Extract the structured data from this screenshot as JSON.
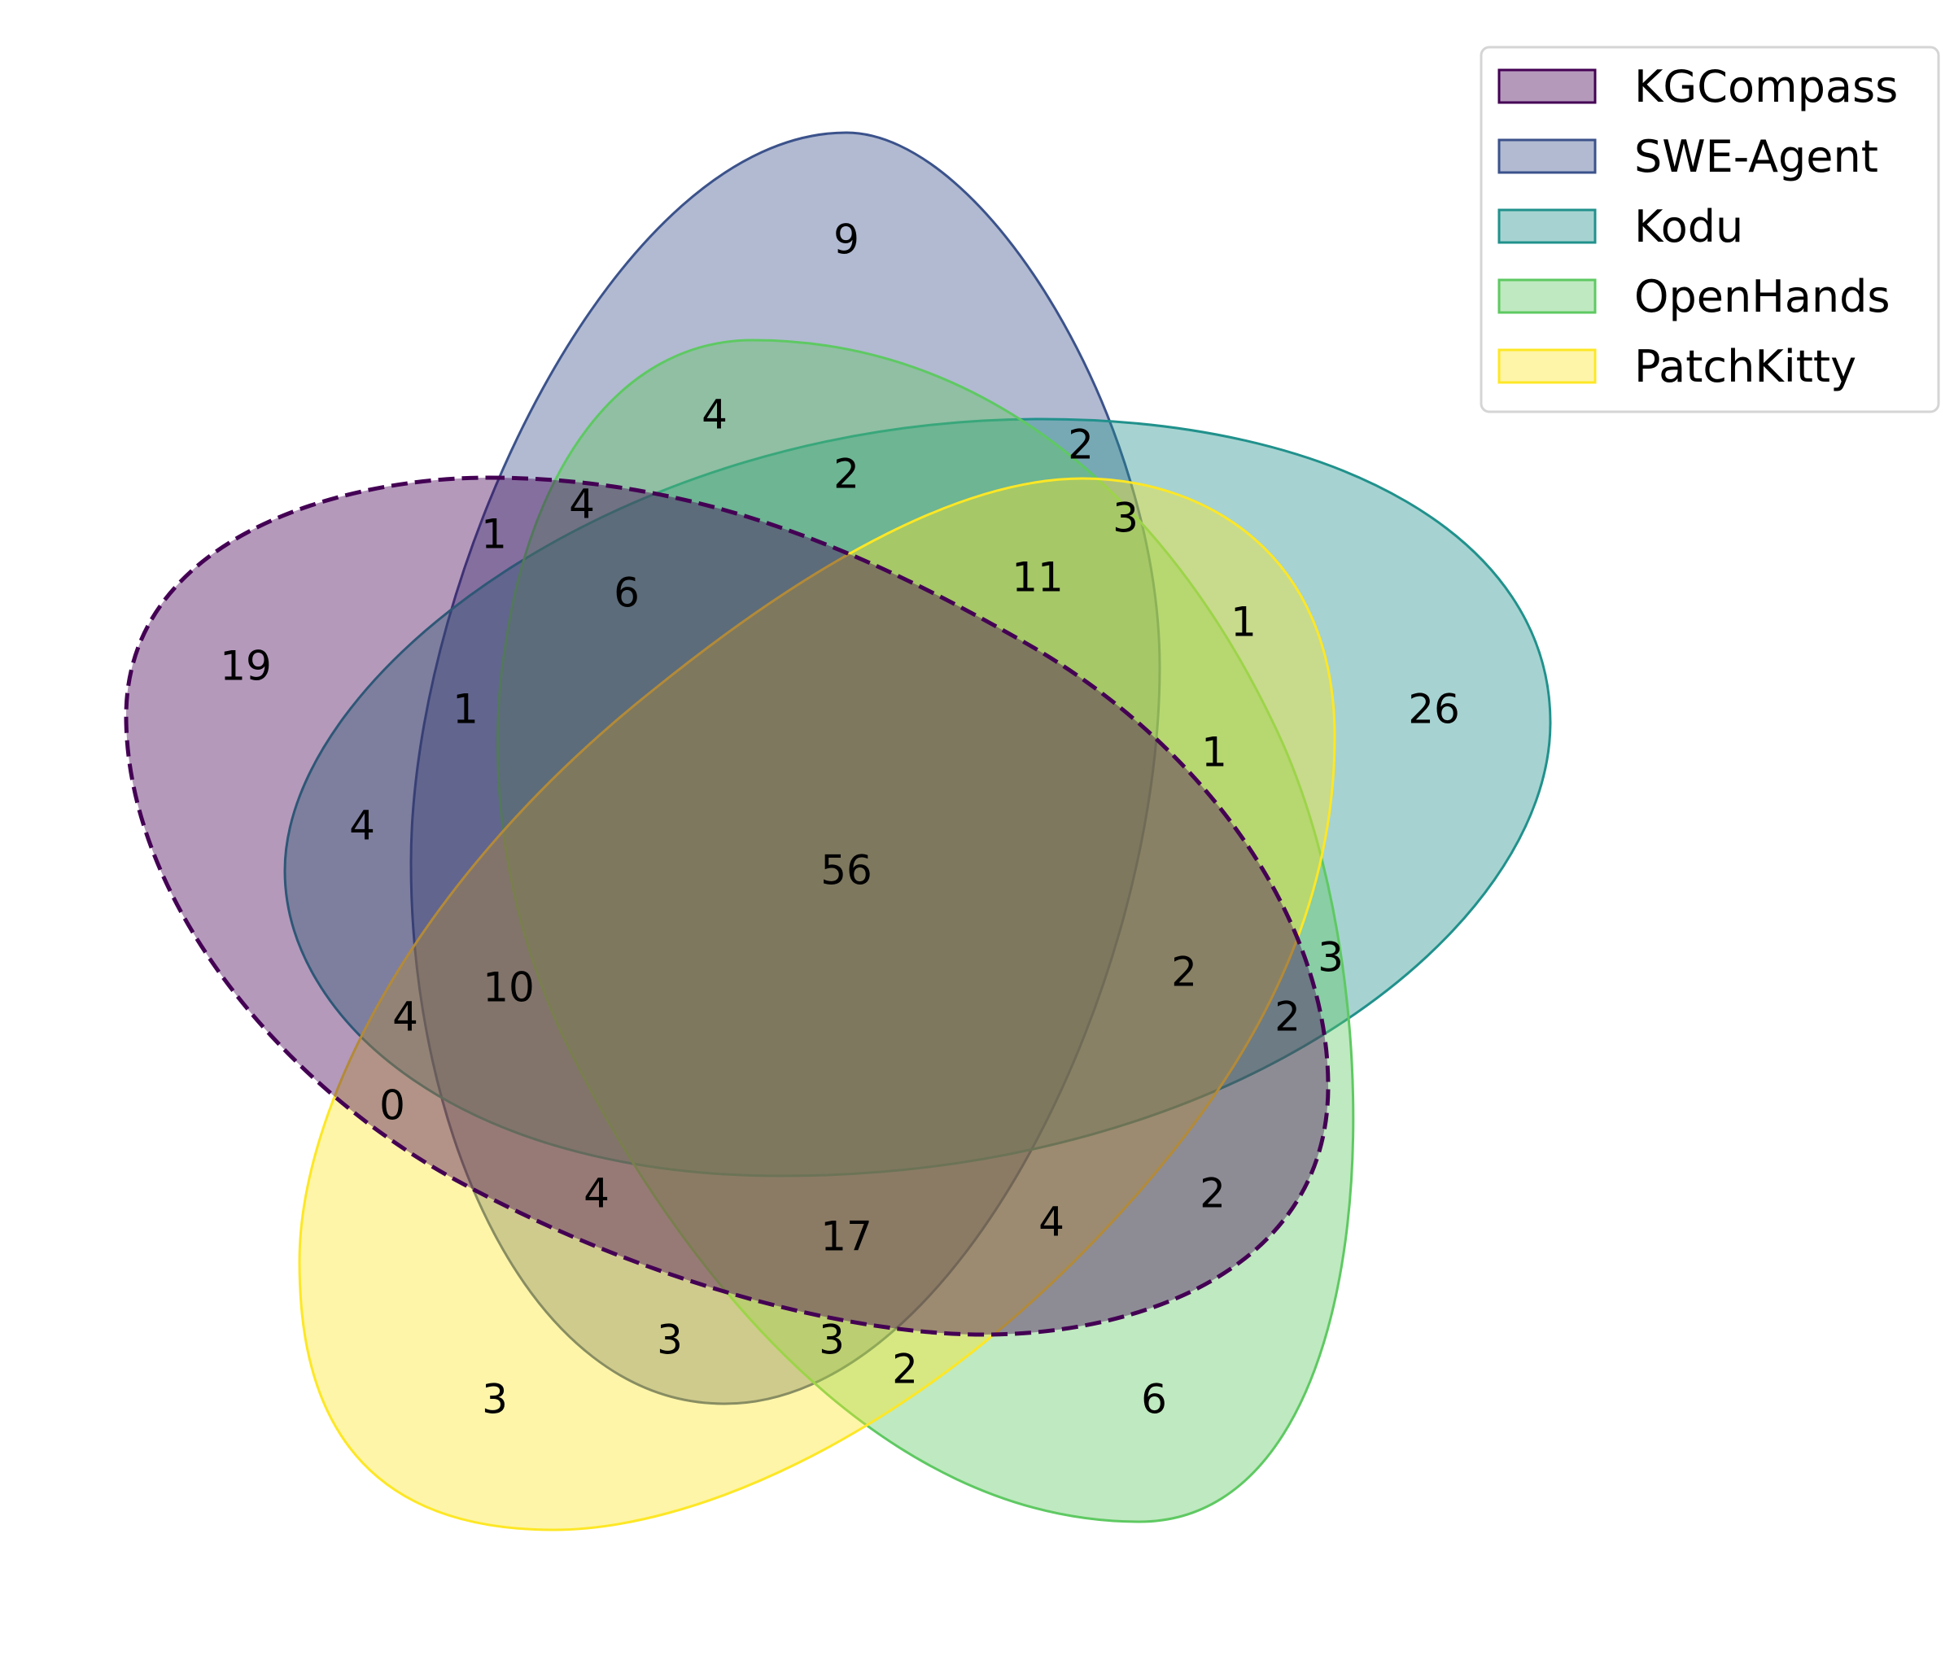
{
  "sets": [
    {
      "name": "KGCompass",
      "color": "#440154"
    },
    {
      "name": "SWE-Agent",
      "color": "#3b528b"
    },
    {
      "name": "Kodu",
      "color": "#21918c"
    },
    {
      "name": "OpenHands",
      "color": "#5ec962"
    },
    {
      "name": "PatchKitty",
      "color": "#fde725"
    }
  ],
  "regions": [
    {
      "value": "9"
    },
    {
      "value": "4"
    },
    {
      "value": "2"
    },
    {
      "value": "2"
    },
    {
      "value": "3"
    },
    {
      "value": "1"
    },
    {
      "value": "4"
    },
    {
      "value": "6"
    },
    {
      "value": "11"
    },
    {
      "value": "1"
    },
    {
      "value": "19"
    },
    {
      "value": "26"
    },
    {
      "value": "1"
    },
    {
      "value": "1"
    },
    {
      "value": "4"
    },
    {
      "value": "56"
    },
    {
      "value": "3"
    },
    {
      "value": "2"
    },
    {
      "value": "10"
    },
    {
      "value": "2"
    },
    {
      "value": "4"
    },
    {
      "value": "0"
    },
    {
      "value": "4"
    },
    {
      "value": "2"
    },
    {
      "value": "4"
    },
    {
      "value": "17"
    },
    {
      "value": "3"
    },
    {
      "value": "3"
    },
    {
      "value": "2"
    },
    {
      "value": "3"
    },
    {
      "value": "6"
    }
  ]
}
